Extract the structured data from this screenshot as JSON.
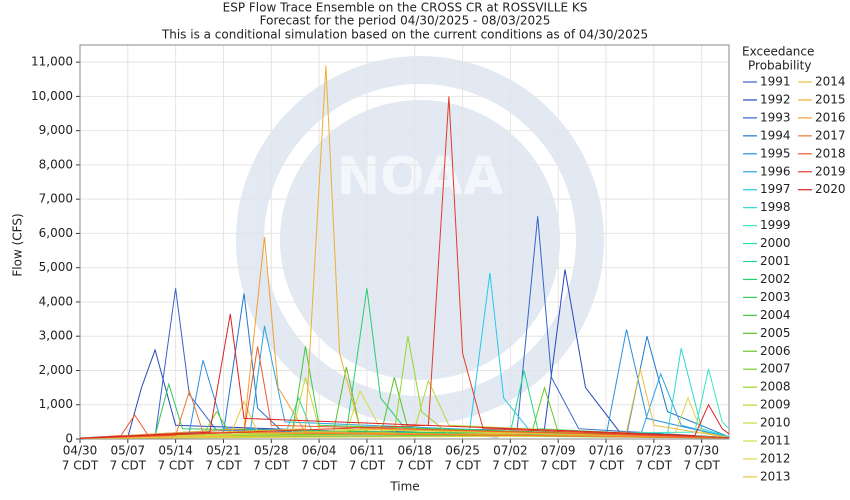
{
  "chart_data": {
    "type": "line",
    "title": "ESP Flow Trace Ensemble on the CROSS CR at ROSSVILLE KS",
    "subtitle": "Forecast for the period 04/30/2025 - 08/03/2025",
    "note": "This is a conditional simulation based on the current conditions as of 04/30/2025",
    "y_label": "Flow (CFS)",
    "x_label": "Time",
    "legend_title": [
      "Exceedance",
      "Probability"
    ],
    "watermark": "NOAA",
    "xlim": [
      "04/30",
      "08/03"
    ],
    "xticks": [
      "04/30",
      "05/07",
      "05/14",
      "05/21",
      "05/28",
      "06/04",
      "06/11",
      "06/18",
      "06/25",
      "07/02",
      "07/09",
      "07/16",
      "07/23",
      "07/30"
    ],
    "xtick_suffix": "7 CDT",
    "ylim": [
      0,
      11500
    ],
    "yticks": [
      0,
      {
        "value": 1000,
        "label": "1,000"
      },
      {
        "value": 2000,
        "label": "2,000"
      },
      {
        "value": 3000,
        "label": "3,000"
      },
      {
        "value": 4000,
        "label": "4,000"
      },
      {
        "value": 5000,
        "label": "5,000"
      },
      {
        "value": 6000,
        "label": "6,000"
      },
      {
        "value": 7000,
        "label": "7,000"
      },
      {
        "value": 8000,
        "label": "8,000"
      },
      {
        "value": 9000,
        "label": "9,000"
      },
      {
        "value": 10000,
        "label": "10,000"
      },
      {
        "value": 11000,
        "label": "11,000"
      }
    ],
    "grid": true,
    "legend": "right",
    "series": [
      {
        "name": "1991",
        "color": "#3a5fcd",
        "x": [
          "04/30",
          "05/11",
          "05/14",
          "05/16",
          "05/20",
          "08/03"
        ],
        "values": [
          20,
          60,
          4400,
          1300,
          250,
          30
        ]
      },
      {
        "name": "1992",
        "color": "#2848b8",
        "x": [
          "04/30",
          "05/07",
          "05/09",
          "05/11",
          "05/14",
          "06/30",
          "07/07",
          "07/10",
          "07/13",
          "07/18",
          "08/03"
        ],
        "values": [
          10,
          50,
          1500,
          2600,
          400,
          60,
          300,
          4950,
          1500,
          200,
          40
        ]
      },
      {
        "name": "1993",
        "color": "#3366cc",
        "x": [
          "04/30",
          "07/03",
          "07/06",
          "07/08",
          "07/12",
          "08/03"
        ],
        "values": [
          20,
          300,
          6500,
          1800,
          300,
          40
        ]
      },
      {
        "name": "1994",
        "color": "#1e78d2",
        "x": [
          "04/30",
          "05/21",
          "05/24",
          "05/26",
          "05/30",
          "07/19",
          "07/22",
          "07/25",
          "08/03"
        ],
        "values": [
          20,
          200,
          4250,
          900,
          150,
          100,
          3000,
          800,
          60
        ]
      },
      {
        "name": "1995",
        "color": "#2a8fe0",
        "x": [
          "04/30",
          "05/16",
          "05/18",
          "05/21",
          "07/16",
          "07/19",
          "07/22",
          "08/03"
        ],
        "values": [
          30,
          200,
          2300,
          300,
          80,
          3200,
          600,
          50
        ]
      },
      {
        "name": "1996",
        "color": "#2aa5e6",
        "x": [
          "04/30",
          "05/25",
          "05/27",
          "05/30",
          "07/21",
          "07/24",
          "07/27",
          "08/03"
        ],
        "values": [
          20,
          300,
          3300,
          500,
          80,
          1900,
          400,
          50
        ]
      },
      {
        "name": "1997",
        "color": "#28c8e8",
        "x": [
          "04/30",
          "06/26",
          "06/29",
          "07/01",
          "07/05",
          "08/03"
        ],
        "values": [
          30,
          200,
          4850,
          1200,
          200,
          40
        ]
      },
      {
        "name": "1998",
        "color": "#2cd8d0",
        "x": [
          "04/30",
          "07/25",
          "07/27",
          "07/30",
          "08/03"
        ],
        "values": [
          20,
          150,
          2650,
          300,
          60
        ]
      },
      {
        "name": "1999",
        "color": "#3ce6c0",
        "x": [
          "04/30",
          "07/29",
          "07/31",
          "08/02",
          "08/03"
        ],
        "values": [
          20,
          200,
          2050,
          500,
          300
        ]
      },
      {
        "name": "2000",
        "color": "#28e0a8",
        "x": [
          "04/30",
          "05/30",
          "06/01",
          "06/03",
          "08/03"
        ],
        "values": [
          20,
          100,
          1200,
          200,
          30
        ]
      },
      {
        "name": "2001",
        "color": "#22d890",
        "x": [
          "04/30",
          "07/02",
          "07/04",
          "07/06",
          "08/03"
        ],
        "values": [
          20,
          200,
          2000,
          300,
          40
        ]
      },
      {
        "name": "2002",
        "color": "#26d070",
        "x": [
          "04/30",
          "06/08",
          "06/11",
          "06/13",
          "06/17",
          "08/03"
        ],
        "values": [
          20,
          200,
          4400,
          1200,
          200,
          40
        ]
      },
      {
        "name": "2003",
        "color": "#34c858",
        "x": [
          "04/30",
          "05/11",
          "05/13",
          "05/15",
          "08/03"
        ],
        "values": [
          20,
          100,
          1600,
          300,
          40
        ]
      },
      {
        "name": "2004",
        "color": "#44c840",
        "x": [
          "04/30",
          "05/31",
          "06/02",
          "06/04",
          "08/03"
        ],
        "values": [
          20,
          100,
          2700,
          400,
          40
        ]
      },
      {
        "name": "2005",
        "color": "#58c030",
        "x": [
          "04/30",
          "06/06",
          "06/08",
          "06/10",
          "06/13",
          "06/15",
          "06/17",
          "08/03"
        ],
        "values": [
          20,
          100,
          2100,
          300,
          100,
          1800,
          300,
          40
        ]
      },
      {
        "name": "2006",
        "color": "#68c828",
        "x": [
          "04/30",
          "07/05",
          "07/07",
          "07/09",
          "08/03"
        ],
        "values": [
          20,
          100,
          1500,
          200,
          40
        ]
      },
      {
        "name": "2007",
        "color": "#78d028",
        "x": [
          "04/30",
          "05/18",
          "05/20",
          "05/22",
          "08/03"
        ],
        "values": [
          20,
          100,
          800,
          150,
          30
        ]
      },
      {
        "name": "2008",
        "color": "#98d428",
        "x": [
          "04/30",
          "06/15",
          "06/17",
          "06/19",
          "06/23",
          "08/03"
        ],
        "values": [
          20,
          200,
          3000,
          800,
          150,
          40
        ]
      },
      {
        "name": "2009",
        "color": "#b4d834",
        "x": [
          "04/30",
          "06/18",
          "06/20",
          "06/23",
          "08/03"
        ],
        "values": [
          20,
          300,
          1700,
          400,
          40
        ]
      },
      {
        "name": "2010",
        "color": "#c6da3c",
        "x": [
          "04/30",
          "05/31",
          "06/02",
          "06/04",
          "08/03"
        ],
        "values": [
          20,
          100,
          1800,
          300,
          30
        ]
      },
      {
        "name": "2011",
        "color": "#d6dc44",
        "x": [
          "04/30",
          "06/08",
          "06/10",
          "06/13",
          "08/03"
        ],
        "values": [
          20,
          200,
          1400,
          300,
          40
        ]
      },
      {
        "name": "2012",
        "color": "#e0d448",
        "x": [
          "04/30",
          "07/26",
          "07/28",
          "07/30",
          "08/03"
        ],
        "values": [
          20,
          100,
          1200,
          200,
          40
        ]
      },
      {
        "name": "2013",
        "color": "#e6c840",
        "x": [
          "04/30",
          "05/22",
          "05/24",
          "05/26",
          "08/03"
        ],
        "values": [
          20,
          100,
          1100,
          200,
          30
        ]
      },
      {
        "name": "2014",
        "color": "#eebe40",
        "x": [
          "04/30",
          "07/19",
          "07/21",
          "07/23",
          "08/03"
        ],
        "values": [
          20,
          200,
          2050,
          400,
          40
        ]
      },
      {
        "name": "2015",
        "color": "#f0b030",
        "x": [
          "04/30",
          "06/02",
          "06/05",
          "06/07",
          "06/10",
          "08/03"
        ],
        "values": [
          20,
          300,
          10900,
          2500,
          300,
          40
        ]
      },
      {
        "name": "2016",
        "color": "#f0a030",
        "x": [
          "04/30",
          "05/24",
          "05/27",
          "05/29",
          "06/02",
          "08/03"
        ],
        "values": [
          20,
          300,
          5900,
          1500,
          200,
          40
        ]
      },
      {
        "name": "2017",
        "color": "#f07830",
        "x": [
          "04/30",
          "05/14",
          "05/16",
          "05/18",
          "08/03"
        ],
        "values": [
          20,
          100,
          1400,
          200,
          30
        ]
      },
      {
        "name": "2018",
        "color": "#ec5a30",
        "x": [
          "04/30",
          "05/06",
          "05/08",
          "05/10",
          "05/24",
          "05/26",
          "05/28",
          "08/03"
        ],
        "values": [
          20,
          100,
          700,
          100,
          200,
          2700,
          400,
          40
        ]
      },
      {
        "name": "2019",
        "color": "#e03c28",
        "x": [
          "04/30",
          "06/20",
          "06/23",
          "06/25",
          "06/28",
          "08/03"
        ],
        "values": [
          20,
          400,
          10000,
          2500,
          300,
          40
        ]
      },
      {
        "name": "2020",
        "color": "#dc2020",
        "x": [
          "04/30",
          "05/19",
          "05/22",
          "05/24",
          "07/29",
          "07/31",
          "08/02",
          "08/03"
        ],
        "values": [
          20,
          200,
          3650,
          600,
          100,
          1000,
          300,
          150
        ]
      }
    ]
  }
}
